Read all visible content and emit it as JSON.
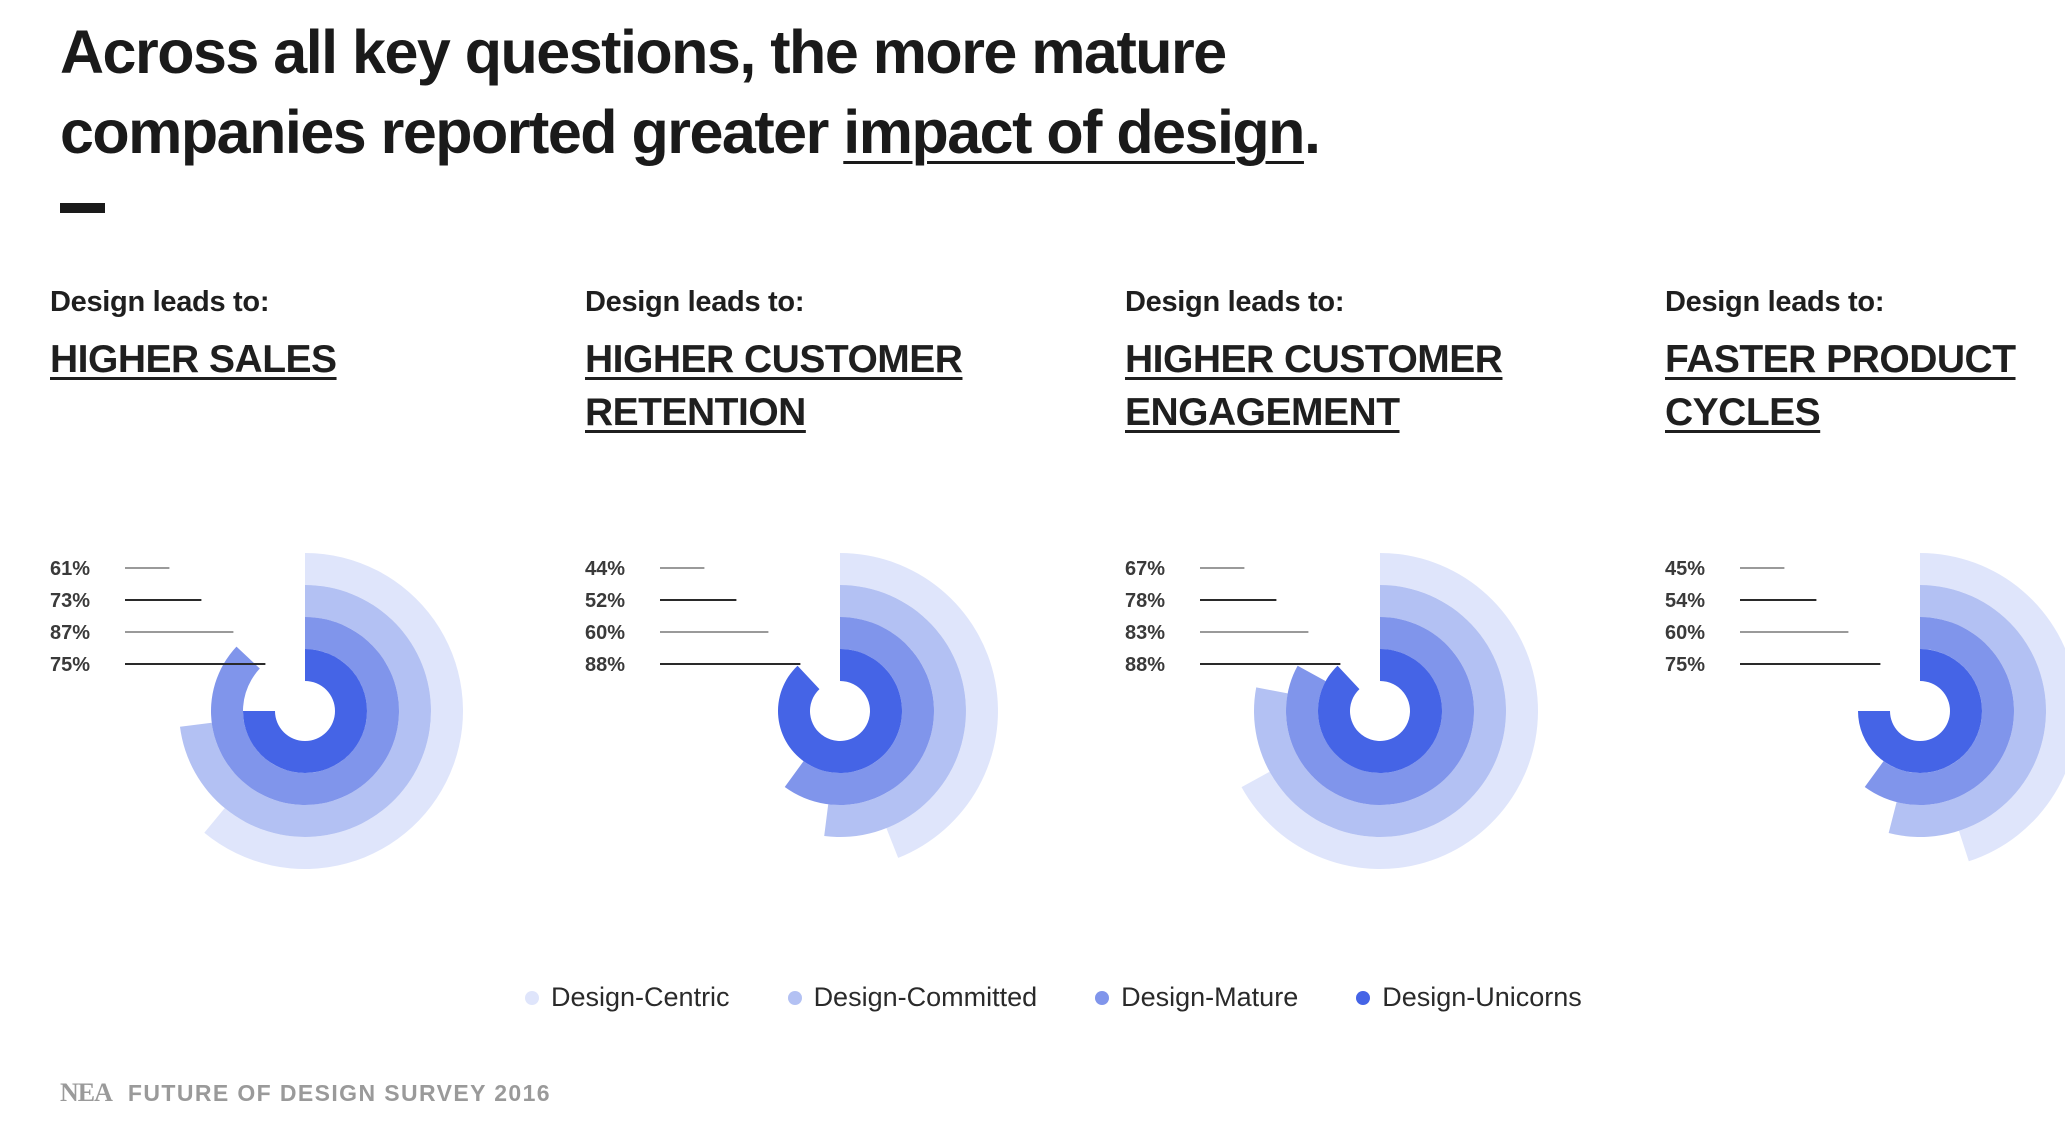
{
  "headline": {
    "line1": "Across all key questions, the more mature",
    "line2_prefix": "companies reported greater ",
    "line2_link": "impact of design",
    "line2_suffix": "."
  },
  "colors": {
    "design_centric": "#dfe5fb",
    "design_committed": "#b3c1f3",
    "design_mature": "#8095eb",
    "design_unicorns": "#4564e6"
  },
  "legend": {
    "items": [
      {
        "label": "Design-Centric",
        "color": "#dfe5fb"
      },
      {
        "label": "Design-Committed",
        "color": "#b3c1f3"
      },
      {
        "label": "Design-Mature",
        "color": "#8095eb"
      },
      {
        "label": "Design-Unicorns",
        "color": "#4564e6"
      }
    ]
  },
  "footer": {
    "logo": "NEA",
    "text": "FUTURE OF DESIGN SURVEY 2016"
  },
  "chart_data": [
    {
      "type": "radial_bar",
      "lead": "Design leads to:",
      "title_lines": [
        "HIGHER SALES"
      ],
      "categories": [
        "Design-Centric",
        "Design-Committed",
        "Design-Mature",
        "Design-Unicorns"
      ],
      "values": [
        61,
        73,
        87,
        75
      ],
      "labels": [
        "61%",
        "73%",
        "87%",
        "75%"
      ],
      "unit": "%"
    },
    {
      "type": "radial_bar",
      "lead": "Design leads to:",
      "title_lines": [
        "HIGHER CUSTOMER",
        "RETENTION"
      ],
      "categories": [
        "Design-Centric",
        "Design-Committed",
        "Design-Mature",
        "Design-Unicorns"
      ],
      "values": [
        44,
        52,
        60,
        88
      ],
      "labels": [
        "44%",
        "52%",
        "60%",
        "88%"
      ],
      "unit": "%"
    },
    {
      "type": "radial_bar",
      "lead": "Design leads to:",
      "title_lines": [
        "HIGHER CUSTOMER",
        "ENGAGEMENT"
      ],
      "categories": [
        "Design-Centric",
        "Design-Committed",
        "Design-Mature",
        "Design-Unicorns"
      ],
      "values": [
        67,
        78,
        83,
        88
      ],
      "labels": [
        "67%",
        "78%",
        "83%",
        "88%"
      ],
      "unit": "%"
    },
    {
      "type": "radial_bar",
      "lead": "Design leads to:",
      "title_lines": [
        "FASTER PRODUCT",
        "CYCLES"
      ],
      "categories": [
        "Design-Centric",
        "Design-Committed",
        "Design-Mature",
        "Design-Unicorns"
      ],
      "values": [
        45,
        54,
        60,
        75
      ],
      "labels": [
        "45%",
        "54%",
        "60%",
        "75%"
      ],
      "unit": "%"
    }
  ]
}
